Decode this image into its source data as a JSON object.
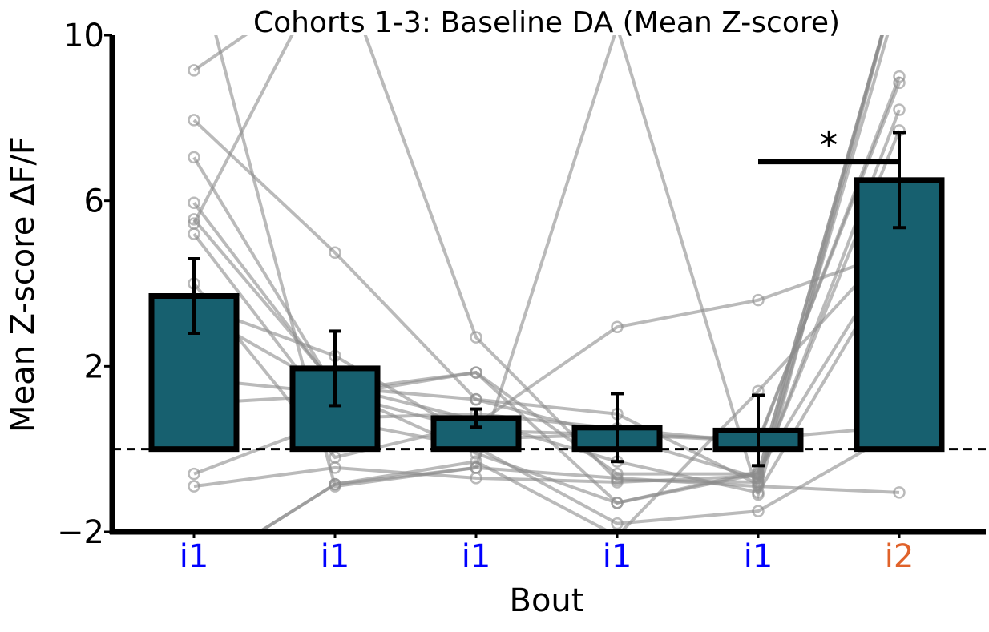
{
  "chart_data": {
    "type": "bar",
    "title": "Cohorts 1-3: Baseline DA (Mean Z-score)",
    "xlabel": "Bout",
    "ylabel": "Mean Z-score ΔF/F",
    "ylim": [
      -2,
      10
    ],
    "yticks": [
      -2,
      2,
      6,
      10
    ],
    "ytick_labels": [
      "−2",
      "2",
      "6",
      "10"
    ],
    "categories": [
      "i1",
      "i1",
      "i1",
      "i1",
      "i1",
      "i2"
    ],
    "category_colors": [
      "#0000ff",
      "#0000ff",
      "#0000ff",
      "#0000ff",
      "#0000ff",
      "#e0622a"
    ],
    "values": [
      3.7,
      1.95,
      0.75,
      0.52,
      0.45,
      6.5
    ],
    "errors": [
      0.9,
      0.9,
      0.22,
      0.82,
      0.85,
      1.15
    ],
    "bar_color": "#17606f",
    "baseline": 0,
    "individual_subjects": [
      [
        9.15,
        11.5,
        12.0,
        10.8,
        11.2,
        11.5
      ],
      [
        7.95,
        4.75,
        1.2,
        0.3,
        -0.7,
        8.2
      ],
      [
        7.05,
        1.45,
        -0.1,
        -1.3,
        -0.55,
        4.95
      ],
      [
        5.95,
        1.5,
        1.2,
        0.85,
        -0.85,
        11.0
      ],
      [
        5.55,
        1.55,
        0.7,
        -0.3,
        -1.05,
        4.7
      ],
      [
        5.45,
        12.0,
        2.7,
        -0.75,
        -0.8,
        11.5
      ],
      [
        5.2,
        0.75,
        0.85,
        0.5,
        0.15,
        9.0
      ],
      [
        4.0,
        -0.2,
        0.6,
        2.95,
        3.6,
        4.8
      ],
      [
        3.5,
        2.25,
        0.25,
        0.35,
        0.2,
        8.85
      ],
      [
        3.35,
        1.4,
        1.85,
        -1.3,
        -0.6,
        11.5
      ],
      [
        1.7,
        1.35,
        0.45,
        0.35,
        0.25,
        0.55
      ],
      [
        1.1,
        1.3,
        1.85,
        -0.6,
        -0.6,
        11.5
      ],
      [
        -0.6,
        0.7,
        0.05,
        -1.8,
        -1.5,
        0.45
      ],
      [
        -0.9,
        -0.45,
        -0.7,
        -0.8,
        -0.65,
        7.7
      ],
      [
        -3.0,
        -0.85,
        -0.3,
        -2.1,
        1.4,
        5.1
      ],
      [
        -3.0,
        -0.85,
        -0.45,
        -0.7,
        -0.9,
        -1.05
      ],
      [
        12.0,
        -0.9,
        -0.45,
        10.2,
        -1.1,
        11.5
      ]
    ],
    "significance": {
      "from": 4,
      "to": 5,
      "y": 6.95,
      "label": "*"
    },
    "grid": false,
    "legend": false
  }
}
